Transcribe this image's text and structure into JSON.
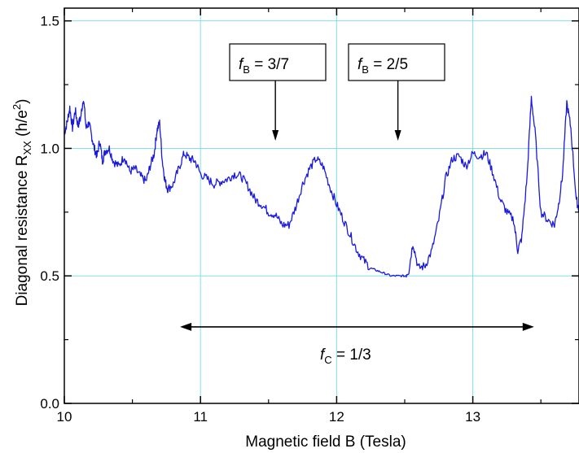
{
  "chart_data": {
    "type": "line",
    "xlabel": "Magnetic field  B (Tesla)",
    "ylabel_main": "Diagonal resistance  R",
    "ylabel_sub": "XX",
    "ylabel_unit": " (h/e",
    "ylabel_sup": "2",
    "ylabel_close": ")",
    "xlim": [
      10,
      13.78
    ],
    "ylim": [
      0,
      1.55
    ],
    "grid": true,
    "grid_color": "#7fe0f0",
    "line_color": "#1a1adf",
    "x_ticks": [
      "10",
      "11",
      "12",
      "13"
    ],
    "y_ticks": [
      "0.0",
      "0.5",
      "1.0",
      "1.5"
    ],
    "annotations": {
      "fb37": {
        "f": "f",
        "sub": "B",
        "rest": " = 3/7",
        "arrow_x": 11.55
      },
      "fb25": {
        "f": "f",
        "sub": "B",
        "rest": " = 2/5",
        "arrow_x": 12.45
      },
      "fc13": {
        "f": "f",
        "sub": "C",
        "rest": " = 1/3",
        "range": [
          10.85,
          13.45
        ],
        "y": 0.3
      }
    },
    "series": [
      {
        "x": [
          10.0,
          10.02,
          10.04,
          10.06,
          10.08,
          10.1,
          10.12,
          10.14,
          10.16,
          10.18,
          10.2,
          10.22,
          10.24,
          10.26,
          10.28,
          10.3,
          10.33,
          10.36,
          10.4,
          10.44,
          10.48,
          10.52,
          10.56,
          10.6,
          10.63,
          10.66,
          10.68,
          10.7,
          10.72,
          10.74,
          10.76,
          10.8,
          10.84,
          10.88,
          10.92,
          10.96,
          11.0,
          11.05,
          11.1,
          11.15,
          11.2,
          11.25,
          11.3,
          11.35,
          11.4,
          11.45,
          11.5,
          11.55,
          11.6,
          11.65,
          11.7,
          11.75,
          11.8,
          11.85,
          11.9,
          11.95,
          12.0,
          12.05,
          12.1,
          12.15,
          12.2,
          12.25,
          12.3,
          12.35,
          12.4,
          12.45,
          12.5,
          12.53,
          12.56,
          12.6,
          12.65,
          12.7,
          12.75,
          12.8,
          12.85,
          12.9,
          12.95,
          13.0,
          13.05,
          13.1,
          13.15,
          13.2,
          13.25,
          13.3,
          13.33,
          13.36,
          13.4,
          13.43,
          13.46,
          13.5,
          13.55,
          13.6,
          13.63,
          13.66,
          13.69,
          13.72,
          13.76,
          13.78
        ],
        "y": [
          1.06,
          1.1,
          1.16,
          1.08,
          1.15,
          1.09,
          1.12,
          1.2,
          1.08,
          1.1,
          1.05,
          1.0,
          0.97,
          1.03,
          0.95,
          0.99,
          1.0,
          0.95,
          0.93,
          0.97,
          0.91,
          0.92,
          0.89,
          0.87,
          0.93,
          0.98,
          1.07,
          1.1,
          0.95,
          0.87,
          0.84,
          0.86,
          0.92,
          0.98,
          0.96,
          0.95,
          0.9,
          0.88,
          0.86,
          0.87,
          0.88,
          0.9,
          0.89,
          0.85,
          0.8,
          0.78,
          0.75,
          0.74,
          0.7,
          0.7,
          0.77,
          0.86,
          0.92,
          0.96,
          0.93,
          0.85,
          0.78,
          0.72,
          0.66,
          0.6,
          0.56,
          0.53,
          0.52,
          0.51,
          0.5,
          0.5,
          0.5,
          0.52,
          0.63,
          0.53,
          0.54,
          0.6,
          0.72,
          0.88,
          0.96,
          0.97,
          0.93,
          0.98,
          0.97,
          0.98,
          0.9,
          0.8,
          0.75,
          0.72,
          0.6,
          0.65,
          0.9,
          1.2,
          1.05,
          0.75,
          0.72,
          0.7,
          0.78,
          0.9,
          1.18,
          1.08,
          0.8,
          0.76
        ]
      }
    ]
  }
}
